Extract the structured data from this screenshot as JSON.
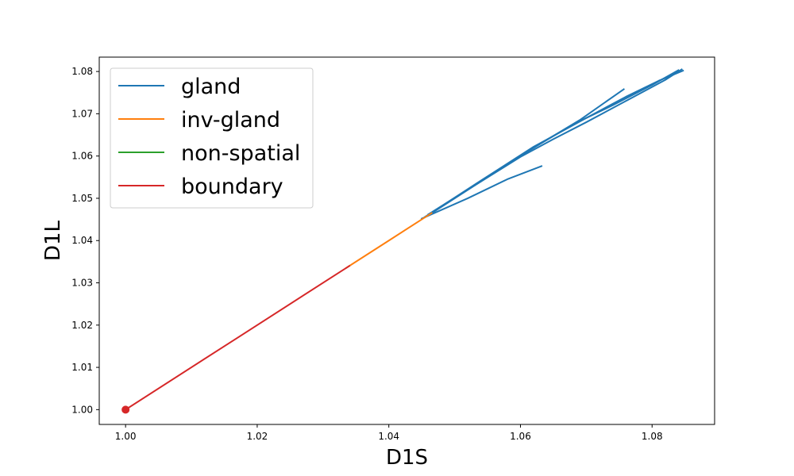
{
  "chart_data": {
    "type": "line",
    "xlabel": "D1S",
    "ylabel": "D1L",
    "xlim": [
      0.996,
      1.0895
    ],
    "ylim": [
      0.9965,
      1.0834
    ],
    "x_ticks": [
      1.0,
      1.02,
      1.04,
      1.06,
      1.08
    ],
    "y_ticks": [
      1.0,
      1.01,
      1.02,
      1.03,
      1.04,
      1.05,
      1.06,
      1.07,
      1.08
    ],
    "grid": false,
    "legend_placement": "top-left",
    "series": [
      {
        "name": "gland",
        "color": "#1f77b4",
        "segments": [
          {
            "x": [
              1.0455,
              1.053,
              1.061,
              1.069,
              1.0757
            ],
            "y": [
              1.0455,
              1.053,
              1.061,
              1.0685,
              1.0758
            ]
          },
          {
            "x": [
              1.0458,
              1.053,
              1.06,
              1.065,
              1.07,
              1.076,
              1.082,
              1.0845
            ],
            "y": [
              1.0458,
              1.053,
              1.0598,
              1.064,
              1.068,
              1.073,
              1.078,
              1.0805
            ]
          },
          {
            "x": [
              1.046,
              1.054,
              1.062,
              1.068,
              1.074,
              1.08,
              1.084
            ],
            "y": [
              1.0462,
              1.054,
              1.062,
              1.0675,
              1.072,
              1.0768,
              1.0803
            ]
          },
          {
            "x": [
              1.0455,
              1.054,
              1.062,
              1.07,
              1.076,
              1.081,
              1.0847
            ],
            "y": [
              1.0456,
              1.0542,
              1.0622,
              1.069,
              1.074,
              1.0778,
              1.0802
            ]
          },
          {
            "x": [
              1.045,
              1.052,
              1.058,
              1.0632
            ],
            "y": [
              1.0452,
              1.05,
              1.0545,
              1.0576
            ]
          }
        ]
      },
      {
        "name": "inv-gland",
        "color": "#ff7f0e",
        "segments": [
          {
            "x": [
              1.0335,
              1.04,
              1.0465
            ],
            "y": [
              1.0335,
              1.04,
              1.0465
            ]
          }
        ]
      },
      {
        "name": "non-spatial",
        "color": "#2ca02c",
        "segments": []
      },
      {
        "name": "boundary",
        "color": "#d62728",
        "segments": [
          {
            "x": [
              1.0,
              1.017,
              1.034
            ],
            "y": [
              1.0,
              1.017,
              1.034
            ]
          }
        ]
      }
    ],
    "markers": [
      {
        "series": "boundary",
        "x": 1.0,
        "y": 1.0,
        "color": "#d62728"
      }
    ]
  }
}
